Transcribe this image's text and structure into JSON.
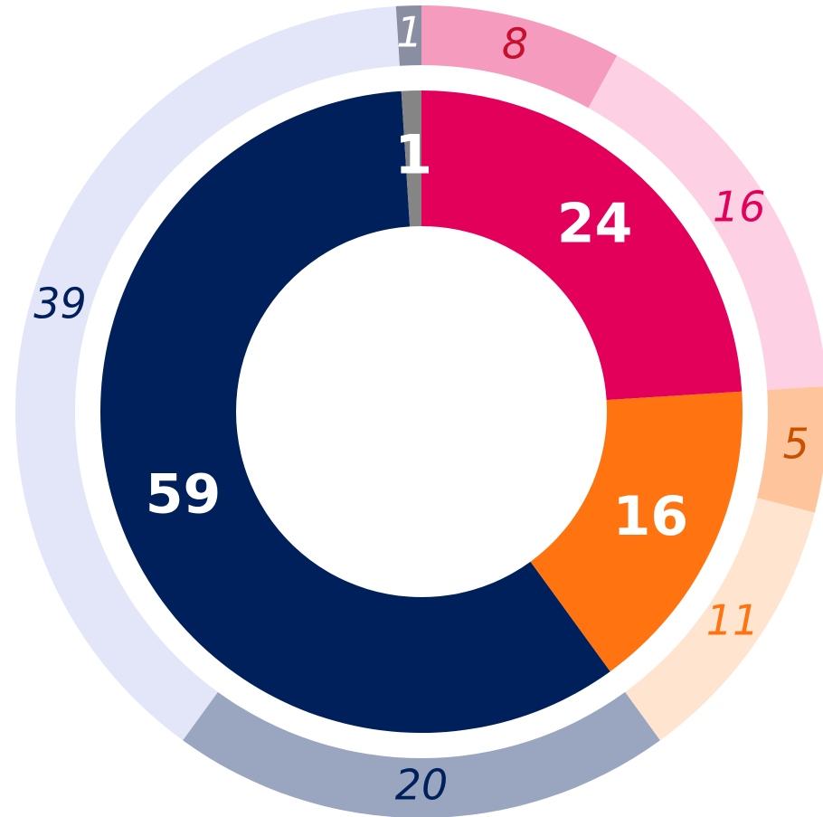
{
  "chart_data": {
    "type": "nested-donut",
    "rings": [
      {
        "values": [
          24,
          16,
          59,
          1
        ],
        "colors": [
          "#e3005a",
          "#ff7410",
          "#00205b",
          "#858585"
        ],
        "label_colors": [
          "#ffffff",
          "#ffffff",
          "#ffffff",
          "#ffffff"
        ]
      },
      {
        "values": [
          8,
          16,
          5,
          11,
          20,
          39,
          1
        ],
        "colors": [
          "#f49bbe",
          "#fdd0e3",
          "#fec59c",
          "#ffe4cf",
          "#9aa6c0",
          "#e3e6f8",
          "#8a8ea2"
        ],
        "label_colors": [
          "#c8102e",
          "#e3005a",
          "#c85000",
          "#ff7410",
          "#00205b",
          "#00205b",
          "#ffffff"
        ]
      }
    ]
  }
}
